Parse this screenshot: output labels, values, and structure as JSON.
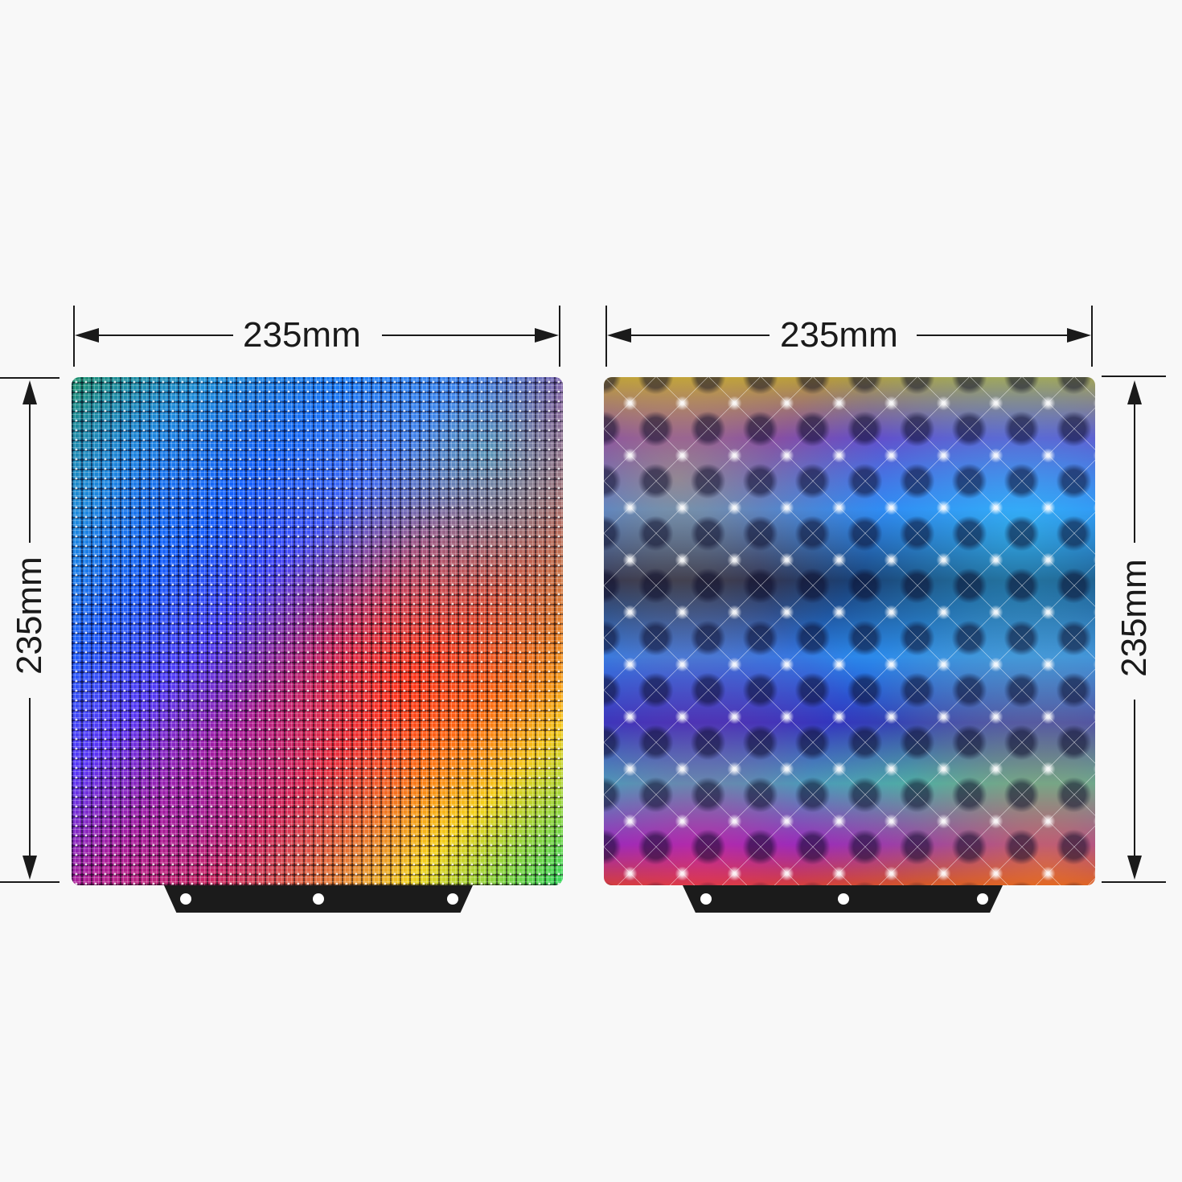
{
  "left_plate": {
    "width_label": "235mm",
    "height_label": "235mm",
    "pattern": "holographic-squares"
  },
  "right_plate": {
    "width_label": "235mm",
    "height_label": "235mm",
    "pattern": "holographic-stars"
  },
  "colors": {
    "background": "#f8f8f8",
    "dimension_ink": "#1a1a1a",
    "tab": "#1b1b1b"
  }
}
